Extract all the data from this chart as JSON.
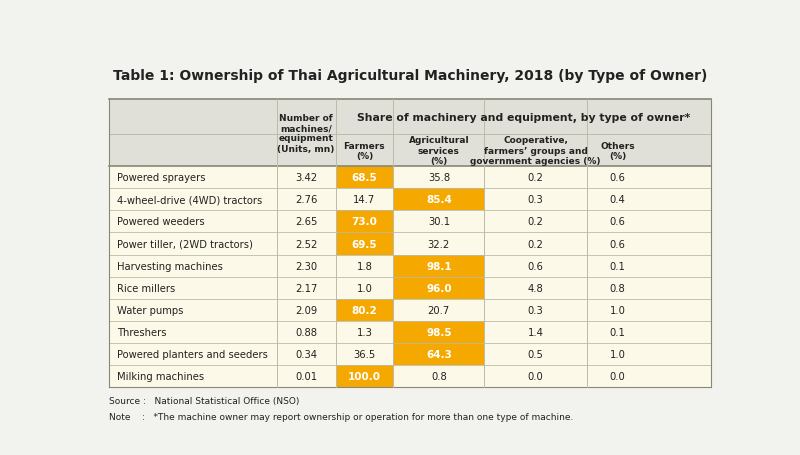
{
  "title": "Table 1: Ownership of Thai Agricultural Machinery, 2018 (by Type of Owner)",
  "col_headers": [
    "Number of\nmachines/\nequipment\n(Units, mn)",
    "Farmers\n(%)",
    "Agricultural\nservices\n(%)",
    "Cooperative,\nfarmers’ groups and\ngovernment agencies (%)",
    "Others\n(%)"
  ],
  "subheader": "Share of machinery and equipment, by type of owner*",
  "rows": [
    [
      "Powered sprayers",
      "3.42",
      "68.5",
      "35.8",
      "0.2",
      "0.6"
    ],
    [
      "4-wheel-drive (4WD) tractors",
      "2.76",
      "14.7",
      "85.4",
      "0.3",
      "0.4"
    ],
    [
      "Powered weeders",
      "2.65",
      "73.0",
      "30.1",
      "0.2",
      "0.6"
    ],
    [
      "Power tiller, (2WD tractors)",
      "2.52",
      "69.5",
      "32.2",
      "0.2",
      "0.6"
    ],
    [
      "Harvesting machines",
      "2.30",
      "1.8",
      "98.1",
      "0.6",
      "0.1"
    ],
    [
      "Rice millers",
      "2.17",
      "1.0",
      "96.0",
      "4.8",
      "0.8"
    ],
    [
      "Water pumps",
      "2.09",
      "80.2",
      "20.7",
      "0.3",
      "1.0"
    ],
    [
      "Threshers",
      "0.88",
      "1.3",
      "98.5",
      "1.4",
      "0.1"
    ],
    [
      "Powered planters and seeders",
      "0.34",
      "36.5",
      "64.3",
      "0.5",
      "1.0"
    ],
    [
      "Milking machines",
      "0.01",
      "100.0",
      "0.8",
      "0.0",
      "0.0"
    ]
  ],
  "highlight_col": [
    1,
    2,
    1,
    1,
    2,
    2,
    1,
    2,
    2,
    1
  ],
  "source": "Source :   National Statistical Office (NSO)",
  "note": "Note    :   *The machine owner may report ownership or operation for more than one type of machine.",
  "bg_color": "#f2f2ee",
  "header_bg": "#e0e0d8",
  "row_bg": "#fdf9e8",
  "highlight_orange": "#f5a800",
  "text_dark": "#222222",
  "border_color": "#bbbbaa",
  "border_heavy": "#888877"
}
